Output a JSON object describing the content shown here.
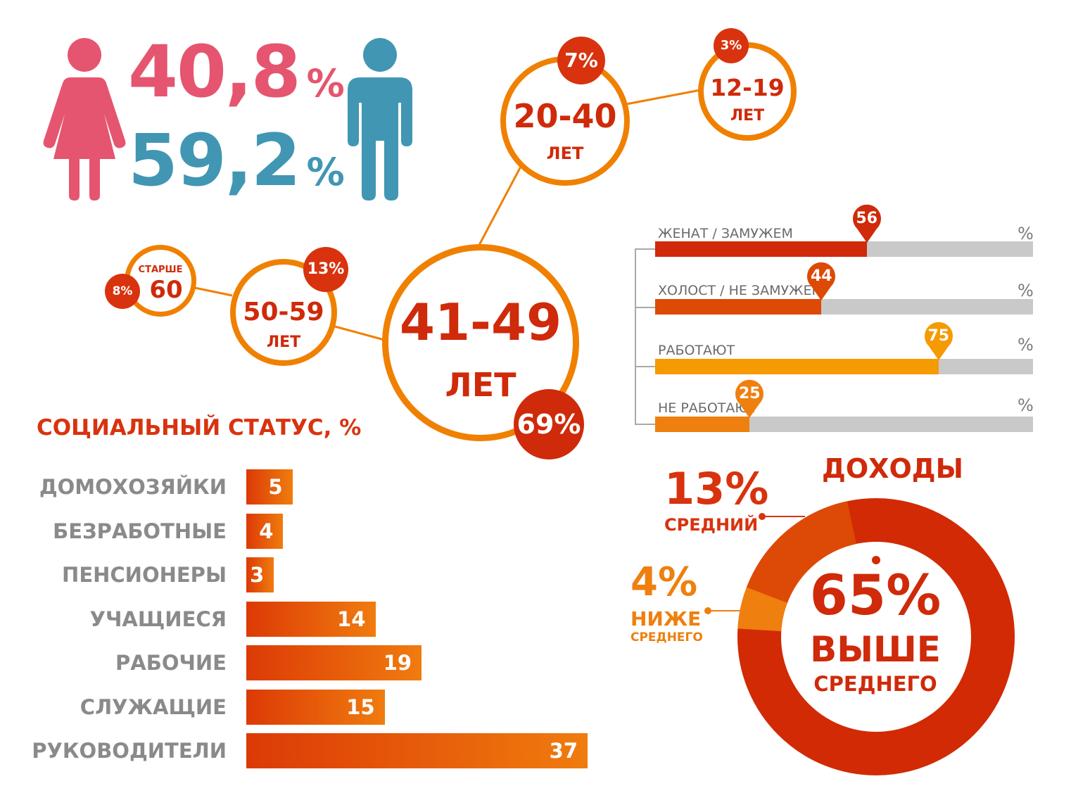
{
  "gender": {
    "female_pct": "40,8",
    "male_pct": "59,2",
    "pct_sign": "%",
    "female_color": "#e5556f",
    "male_color": "#4196b3"
  },
  "age_groups": [
    {
      "range": "41-49",
      "unit": "ЛЕТ",
      "pct": "69%"
    },
    {
      "range": "20-40",
      "unit": "ЛЕТ",
      "pct": "7%"
    },
    {
      "range": "12-19",
      "unit": "ЛЕТ",
      "pct": "3%"
    },
    {
      "range": "50-59",
      "unit": "ЛЕТ",
      "pct": "13%"
    },
    {
      "range": "60",
      "unit": "СТАРШЕ",
      "pct": "8%"
    }
  ],
  "marital": {
    "unit": "%",
    "rows": [
      {
        "label": "ЖЕНАТ / ЗАМУЖЕМ",
        "value": 56,
        "color": "#cf2a0a"
      },
      {
        "label": "ХОЛОСТ / НЕ ЗАМУЖЕМ",
        "value": 44,
        "color": "#dc4a06"
      },
      {
        "label": "РАБОТАЮТ",
        "value": 75,
        "color": "#f59a00"
      },
      {
        "label": "НЕ РАБОТАЮТ",
        "value": 25,
        "color": "#ef7f0e"
      }
    ]
  },
  "social": {
    "title": "СОЦИАЛЬНЫЙ СТАТУС, %"
  },
  "income": {
    "title": "ДОХОДЫ",
    "above_pct": "65%",
    "above_label_1": "ВЫШЕ",
    "above_label_2": "СРЕДНЕГО",
    "middle_pct": "13%",
    "middle_label": "СРЕДНИЙ",
    "below_pct": "4%",
    "below_label_1": "НИЖЕ",
    "below_label_2": "СРЕДНЕГО",
    "colors": {
      "above": "#d12a05",
      "middle": "#dc4a06",
      "below": "#ef7f0e"
    }
  },
  "chart_data": {
    "type": "bar",
    "title": "СОЦИАЛЬНЫЙ СТАТУС, %",
    "categories": [
      "ДОМОХОЗЯЙКИ",
      "БЕЗРАБОТНЫЕ",
      "ПЕНСИОНЕРЫ",
      "УЧАЩИЕСЯ",
      "РАБОЧИЕ",
      "СЛУЖАЩИЕ",
      "РУКОВОДИТЕЛИ"
    ],
    "values": [
      5,
      4,
      3,
      14,
      19,
      15,
      37
    ],
    "orientation": "horizontal",
    "xlim": [
      0,
      37
    ],
    "grid": false
  }
}
